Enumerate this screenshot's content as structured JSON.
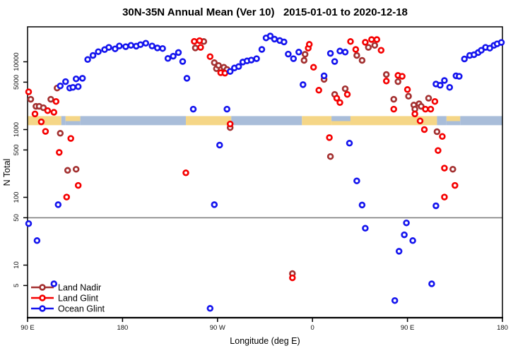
{
  "title": "30N-35N Annual Mean (Ver 10)   2015-01-01 to 2020-12-18",
  "colors": {
    "land_nadir": "#A33030",
    "land_glint": "#F50000",
    "ocean_glint": "#1414EE",
    "map_land": "#F5D687",
    "map_ocean": "#A9BDD9",
    "reference_line": "#808080",
    "axis": "#000000"
  },
  "legend": {
    "items": [
      {
        "label": "Land Nadir",
        "color": "#A33030"
      },
      {
        "label": "Land Glint",
        "color": "#F50000"
      },
      {
        "label": "Ocean Glint",
        "color": "#1414EE"
      }
    ]
  },
  "chart_data": {
    "type": "scatter",
    "title": "30N-35N Annual Mean (Ver 10)   2015-01-01 to 2020-12-18",
    "xlabel": "Longitude (deg E)",
    "ylabel": "N Total",
    "x_axis": {
      "start_deg_east": 90,
      "span_deg": 450,
      "wraps_globe": true,
      "tick_positions_deg_from_start": [
        0,
        90,
        180,
        270,
        360,
        450
      ],
      "tick_labels": [
        "90 E",
        "180",
        "90 W",
        "0",
        "90 E",
        "180"
      ]
    },
    "y_axis": {
      "scale": "log10",
      "ticks": [
        10000,
        5000,
        1000,
        500,
        100,
        50,
        10,
        5
      ],
      "tick_labels": [
        "10000",
        "5000",
        "1000",
        "500",
        "100",
        "50",
        "10",
        "5"
      ]
    },
    "reference_line": {
      "value": 50
    },
    "map_band": {
      "top_value": 1580,
      "bottom_value": 1160,
      "segments": [
        {
          "from": 0,
          "to": 32,
          "type": "land"
        },
        {
          "from": 32,
          "to": 36,
          "type": "ocean"
        },
        {
          "from": 36,
          "to": 50,
          "type": "mixed_land_top"
        },
        {
          "from": 50,
          "to": 150,
          "type": "ocean"
        },
        {
          "from": 150,
          "to": 193,
          "type": "land"
        },
        {
          "from": 193,
          "to": 260,
          "type": "ocean"
        },
        {
          "from": 260,
          "to": 288,
          "type": "land"
        },
        {
          "from": 288,
          "to": 306,
          "type": "mixed_ocean_top"
        },
        {
          "from": 306,
          "to": 388,
          "type": "land"
        },
        {
          "from": 388,
          "to": 397,
          "type": "ocean"
        },
        {
          "from": 397,
          "to": 410,
          "type": "mixed_land_top"
        },
        {
          "from": 410,
          "to": 450,
          "type": "ocean"
        }
      ]
    },
    "series": [
      {
        "name": "Land Nadir",
        "color": "#A33030",
        "points": [
          [
            3,
            2800
          ],
          [
            8,
            2200
          ],
          [
            11,
            2200
          ],
          [
            15,
            2100
          ],
          [
            22,
            2800
          ],
          [
            28,
            4100
          ],
          [
            31,
            880
          ],
          [
            38,
            250
          ],
          [
            46,
            260
          ],
          [
            159,
            16000
          ],
          [
            167,
            19900
          ],
          [
            177,
            9700
          ],
          [
            179,
            7900
          ],
          [
            181,
            8800
          ],
          [
            186,
            8300
          ],
          [
            189,
            7700
          ],
          [
            192,
            1070
          ],
          [
            251,
            7.5
          ],
          [
            262,
            10500
          ],
          [
            263,
            12900
          ],
          [
            281,
            5500
          ],
          [
            287,
            400
          ],
          [
            291,
            3300
          ],
          [
            301,
            4000
          ],
          [
            312,
            12400
          ],
          [
            317,
            10500
          ],
          [
            323,
            16300
          ],
          [
            329,
            17500
          ],
          [
            340,
            6500
          ],
          [
            347,
            2800
          ],
          [
            351,
            5100
          ],
          [
            361,
            3100
          ],
          [
            366,
            2300
          ],
          [
            367,
            2000
          ],
          [
            371,
            2400
          ],
          [
            373,
            2200
          ],
          [
            380,
            2900
          ],
          [
            388,
            930
          ],
          [
            403,
            260
          ]
        ]
      },
      {
        "name": "Land Glint",
        "color": "#F50000",
        "points": [
          [
            1,
            3600
          ],
          [
            7,
            1700
          ],
          [
            13,
            1300
          ],
          [
            19,
            1900
          ],
          [
            25,
            1800
          ],
          [
            27,
            2600
          ],
          [
            17,
            940
          ],
          [
            30,
            460
          ],
          [
            37,
            101
          ],
          [
            41,
            740
          ],
          [
            48,
            150
          ],
          [
            150,
            230
          ],
          [
            158,
            20000
          ],
          [
            163,
            20500
          ],
          [
            164,
            16300
          ],
          [
            173,
            11900
          ],
          [
            183,
            6900
          ],
          [
            187,
            6800
          ],
          [
            192,
            1210
          ],
          [
            251,
            6.5
          ],
          [
            266,
            15900
          ],
          [
            267,
            18100
          ],
          [
            271,
            8300
          ],
          [
            276,
            3800
          ],
          [
            286,
            760
          ],
          [
            293,
            2900
          ],
          [
            296,
            2500
          ],
          [
            303,
            3300
          ],
          [
            306,
            19900
          ],
          [
            311,
            15200
          ],
          [
            320,
            19400
          ],
          [
            326,
            21300
          ],
          [
            331,
            21300
          ],
          [
            335,
            14800
          ],
          [
            340,
            5200
          ],
          [
            347,
            2000
          ],
          [
            351,
            6300
          ],
          [
            355,
            6100
          ],
          [
            360,
            3900
          ],
          [
            367,
            1700
          ],
          [
            372,
            1340
          ],
          [
            376,
            1000
          ],
          [
            377,
            2000
          ],
          [
            382,
            2000
          ],
          [
            386,
            2600
          ],
          [
            389,
            490
          ],
          [
            393,
            790
          ],
          [
            395,
            270
          ],
          [
            395,
            101
          ],
          [
            405,
            150
          ]
        ]
      },
      {
        "name": "Ocean Glint",
        "color": "#1414EE",
        "points": [
          [
            1,
            41
          ],
          [
            9,
            23
          ],
          [
            25,
            5.3
          ],
          [
            29,
            78
          ],
          [
            31,
            4400
          ],
          [
            36,
            5100
          ],
          [
            40,
            4100
          ],
          [
            43,
            4200
          ],
          [
            46,
            5600
          ],
          [
            48,
            4300
          ],
          [
            52,
            5700
          ],
          [
            57,
            10800
          ],
          [
            62,
            12400
          ],
          [
            67,
            14100
          ],
          [
            73,
            15100
          ],
          [
            77,
            16300
          ],
          [
            83,
            15500
          ],
          [
            87,
            17100
          ],
          [
            93,
            16700
          ],
          [
            98,
            17500
          ],
          [
            103,
            17000
          ],
          [
            107,
            17900
          ],
          [
            112,
            18800
          ],
          [
            118,
            17100
          ],
          [
            123,
            16000
          ],
          [
            128,
            15700
          ],
          [
            133,
            11200
          ],
          [
            138,
            12100
          ],
          [
            143,
            13700
          ],
          [
            147,
            10100
          ],
          [
            151,
            5700
          ],
          [
            157,
            2000
          ],
          [
            173,
            2.3
          ],
          [
            177,
            78
          ],
          [
            182,
            590
          ],
          [
            189,
            2000
          ],
          [
            192,
            7200
          ],
          [
            196,
            8100
          ],
          [
            200,
            8500
          ],
          [
            204,
            9900
          ],
          [
            208,
            10300
          ],
          [
            212,
            10600
          ],
          [
            217,
            11100
          ],
          [
            222,
            15200
          ],
          [
            226,
            22500
          ],
          [
            230,
            24000
          ],
          [
            234,
            21600
          ],
          [
            239,
            20600
          ],
          [
            243,
            19600
          ],
          [
            247,
            13000
          ],
          [
            252,
            11100
          ],
          [
            257,
            13900
          ],
          [
            261,
            4600
          ],
          [
            281,
            6200
          ],
          [
            287,
            13300
          ],
          [
            291,
            10100
          ],
          [
            296,
            14400
          ],
          [
            301,
            13900
          ],
          [
            305,
            630
          ],
          [
            312,
            175
          ],
          [
            317,
            77
          ],
          [
            320,
            35
          ],
          [
            348,
            3
          ],
          [
            352,
            16
          ],
          [
            357,
            28
          ],
          [
            359,
            42
          ],
          [
            365,
            23
          ],
          [
            383,
            5.3
          ],
          [
            387,
            75
          ],
          [
            387,
            4700
          ],
          [
            391,
            4500
          ],
          [
            395,
            5300
          ],
          [
            400,
            4200
          ],
          [
            406,
            6200
          ],
          [
            409,
            6100
          ],
          [
            414,
            11000
          ],
          [
            419,
            12400
          ],
          [
            423,
            12700
          ],
          [
            427,
            13700
          ],
          [
            430,
            14800
          ],
          [
            434,
            16300
          ],
          [
            438,
            15900
          ],
          [
            442,
            17500
          ],
          [
            445,
            18400
          ],
          [
            449,
            19300
          ]
        ]
      }
    ]
  }
}
